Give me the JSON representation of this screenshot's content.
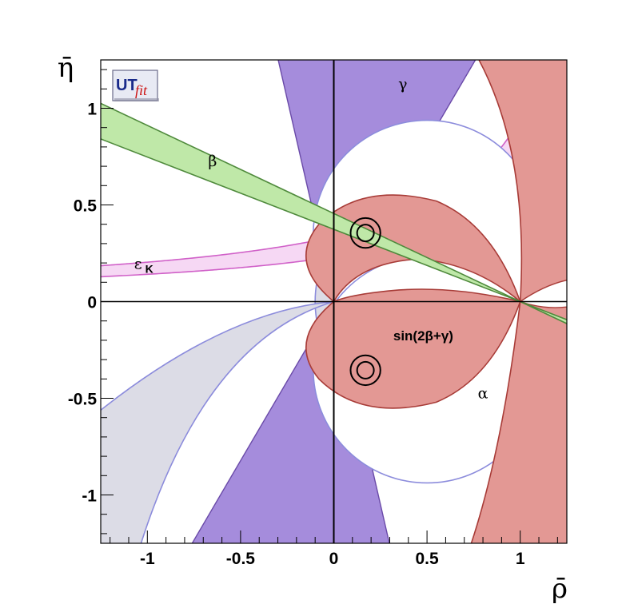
{
  "chart_data": {
    "type": "region",
    "xlabel": "ρ̄",
    "ylabel": "η̄",
    "xlim": [
      -1.25,
      1.25
    ],
    "ylim": [
      -1.25,
      1.25
    ],
    "x_ticks": [
      {
        "value": -1,
        "label": "-1"
      },
      {
        "value": -0.5,
        "label": "-0.5"
      },
      {
        "value": 0,
        "label": "0"
      },
      {
        "value": 0.5,
        "label": "0.5"
      },
      {
        "value": 1,
        "label": "1"
      }
    ],
    "y_ticks": [
      {
        "value": 1,
        "label": "1"
      },
      {
        "value": 0.5,
        "label": "0.5"
      },
      {
        "value": 0,
        "label": "0"
      },
      {
        "value": -0.5,
        "label": "-0.5"
      },
      {
        "value": -1,
        "label": "-1"
      }
    ],
    "logo": {
      "part1": "UT",
      "part2": "fit"
    },
    "constraints": [
      {
        "label": "γ",
        "label_pos": [
          0.37,
          1.1
        ],
        "color": "#a58cdc",
        "stroke": "#6a4aa8",
        "bounds_angle_deg": [
          57,
          76
        ]
      },
      {
        "label": "β",
        "label_pos": [
          -0.65,
          0.7
        ],
        "color": "#bfe8a8",
        "stroke": "#4f8a3c",
        "bounds_angle_deg": [
          20.5,
          24.5
        ]
      },
      {
        "label": "ε",
        "sublabel": "K",
        "label_pos": [
          -1.05,
          0.17
        ],
        "color": "#f6d8f4",
        "stroke": "#d060c8"
      },
      {
        "label": "sin(2β+γ)",
        "label_pos": [
          0.48,
          -0.2
        ],
        "color": "#e39894",
        "stroke": "#a83c38"
      },
      {
        "label": "α",
        "label_pos": [
          0.8,
          -0.5
        ],
        "color": "#dcdce6",
        "stroke": "#8c8cdc"
      }
    ],
    "fit_contours": [
      {
        "center": [
          0.17,
          0.355
        ],
        "radii": [
          0.045,
          0.08
        ]
      },
      {
        "center": [
          0.17,
          -0.355
        ],
        "radii": [
          0.045,
          0.08
        ]
      }
    ],
    "grid": false,
    "colors": {
      "axes": "#000000",
      "fit": "#000000"
    }
  }
}
